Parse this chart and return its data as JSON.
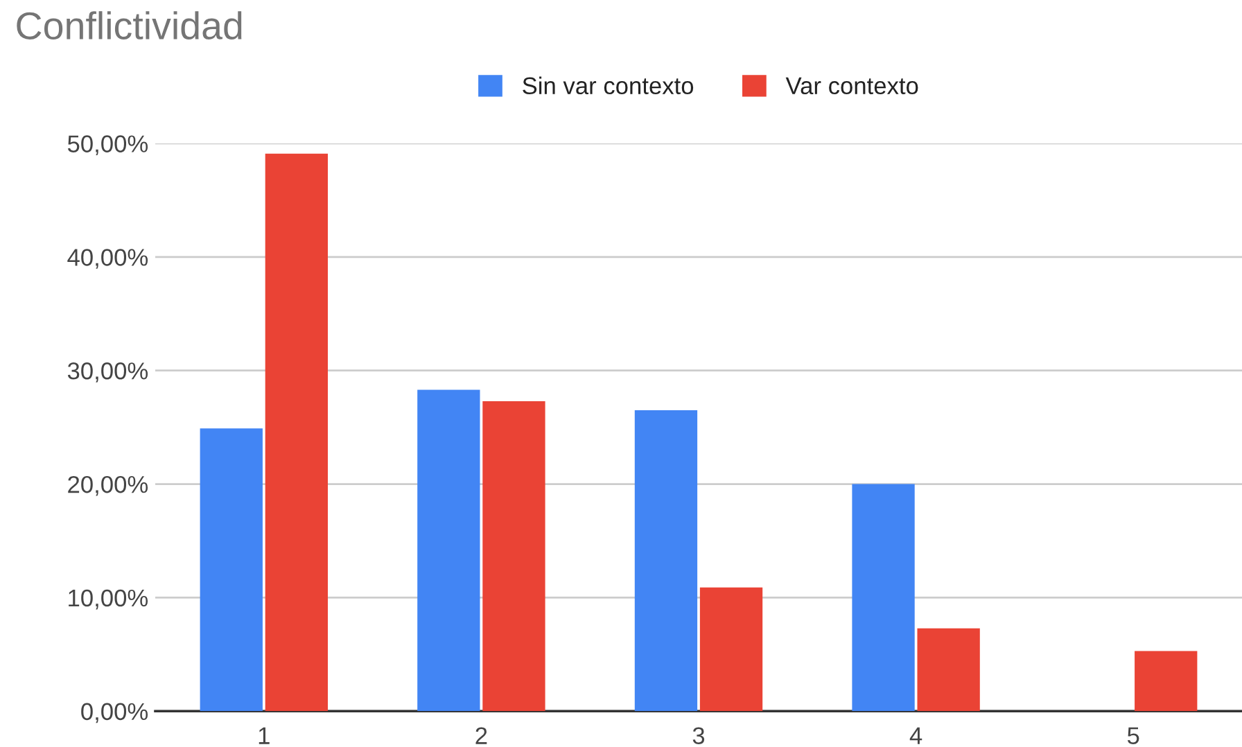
{
  "chart_data": {
    "type": "bar",
    "title": "Conflictividad",
    "categories": [
      "1",
      "2",
      "3",
      "4",
      "5"
    ],
    "series": [
      {
        "name": "Sin var contexto",
        "color": "#4285f4",
        "values": [
          24.9,
          28.3,
          26.5,
          20.0,
          null
        ]
      },
      {
        "name": "Var contexto",
        "color": "#ea4335",
        "values": [
          49.1,
          27.3,
          10.9,
          7.3,
          5.3
        ]
      }
    ],
    "ylim": [
      0,
      50
    ],
    "yticks": [
      {
        "value": 0,
        "label": "0,00%"
      },
      {
        "value": 10,
        "label": "10,00%"
      },
      {
        "value": 20,
        "label": "20,00%"
      },
      {
        "value": 30,
        "label": "30,00%"
      },
      {
        "value": 40,
        "label": "40,00%"
      },
      {
        "value": 50,
        "label": "50,00%"
      }
    ],
    "grid": "y",
    "legend": "top"
  }
}
